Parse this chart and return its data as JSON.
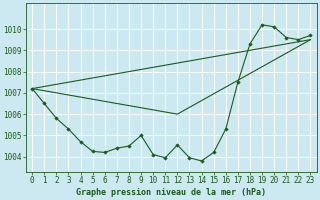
{
  "title": "Graphe pression niveau de la mer (hPa)",
  "bg_color": "#cce8f0",
  "grid_color": "#ffffff",
  "line_color": "#1a5c1a",
  "marker_color": "#1a5c1a",
  "xlim": [
    -0.5,
    23.5
  ],
  "ylim": [
    1003.3,
    1011.2
  ],
  "yticks": [
    1004,
    1005,
    1006,
    1007,
    1008,
    1009,
    1010
  ],
  "xticks": [
    0,
    1,
    2,
    3,
    4,
    5,
    6,
    7,
    8,
    9,
    10,
    11,
    12,
    13,
    14,
    15,
    16,
    17,
    18,
    19,
    20,
    21,
    22,
    23
  ],
  "series1_x": [
    0,
    1,
    2,
    3,
    4,
    5,
    6,
    7,
    8,
    9,
    10,
    11,
    12,
    13,
    14,
    15,
    16,
    17,
    18,
    19,
    20,
    21,
    22,
    23
  ],
  "series1_y": [
    1007.2,
    1006.5,
    1005.8,
    1005.3,
    1004.7,
    1004.25,
    1004.2,
    1004.4,
    1004.5,
    1005.0,
    1004.1,
    1003.95,
    1004.55,
    1003.95,
    1003.8,
    1004.2,
    1005.3,
    1007.5,
    1009.3,
    1010.2,
    1010.1,
    1009.6,
    1009.5,
    1009.7
  ],
  "trend1_x": [
    0,
    23
  ],
  "trend1_y": [
    1007.2,
    1009.5
  ],
  "trend2_x": [
    0,
    12,
    23
  ],
  "trend2_y": [
    1007.2,
    1006.0,
    1009.5
  ],
  "title_fontsize": 6.0,
  "tick_fontsize": 5.5
}
